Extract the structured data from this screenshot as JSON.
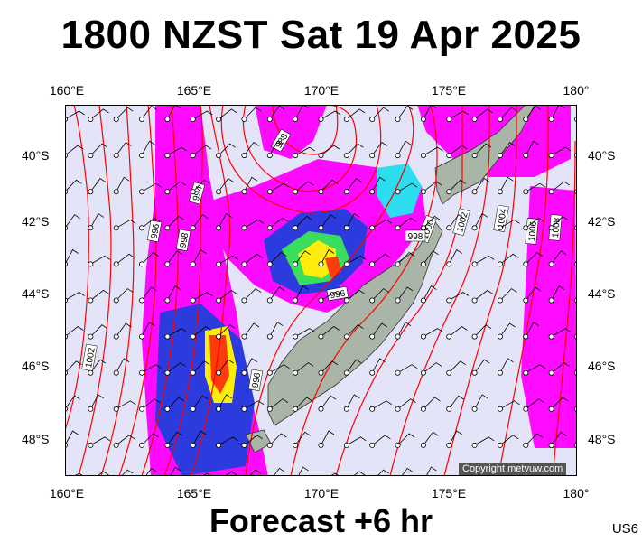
{
  "title": "1800 NZST Sat 19 Apr 2025",
  "footer": "Forecast +6 hr",
  "code": "US6",
  "copyright": "Copyright metvuw.com",
  "lon_labels": [
    "160°E",
    "165°E",
    "170°E",
    "175°E",
    "180°"
  ],
  "lat_labels": [
    "40°S",
    "42°S",
    "44°S",
    "46°S",
    "48°S"
  ],
  "isobar_labels": [
    "988",
    "994",
    "996",
    "998",
    "1000",
    "1002",
    "1004",
    "1006",
    "1008",
    "998",
    "996",
    "1000",
    "1002",
    "996"
  ],
  "colors": {
    "background": "#e4e4f8",
    "isobar": "#ff0000",
    "land": "#a9b5a6",
    "rain_light": "#ff00ff",
    "rain_mid": "#2222dd",
    "rain_heavy": "#ffff00",
    "rain_max": "#ff2200"
  }
}
